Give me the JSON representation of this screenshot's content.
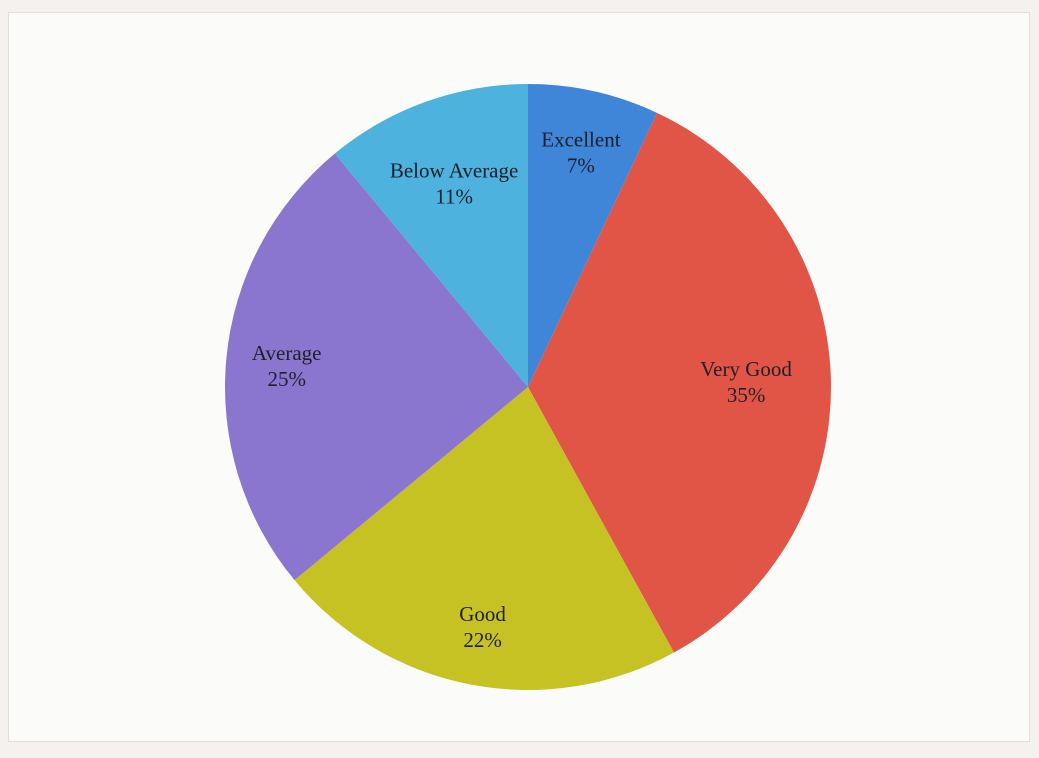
{
  "chart_data": {
    "type": "pie",
    "title": "",
    "slices": [
      {
        "label": "Excellent",
        "value": 7,
        "value_label": "7%",
        "color": "#3f86d8"
      },
      {
        "label": "Very Good",
        "value": 35,
        "value_label": "35%",
        "color": "#e05545"
      },
      {
        "label": "Good",
        "value": 22,
        "value_label": "22%",
        "color": "#c6c224"
      },
      {
        "label": "Average",
        "value": 25,
        "value_label": "25%",
        "color": "#8a76cf"
      },
      {
        "label": "Below Average",
        "value": 11,
        "value_label": "11%",
        "color": "#4db2dd"
      }
    ],
    "start_angle_deg": 0,
    "direction": "clockwise",
    "legend": "none",
    "labels": "inside"
  }
}
